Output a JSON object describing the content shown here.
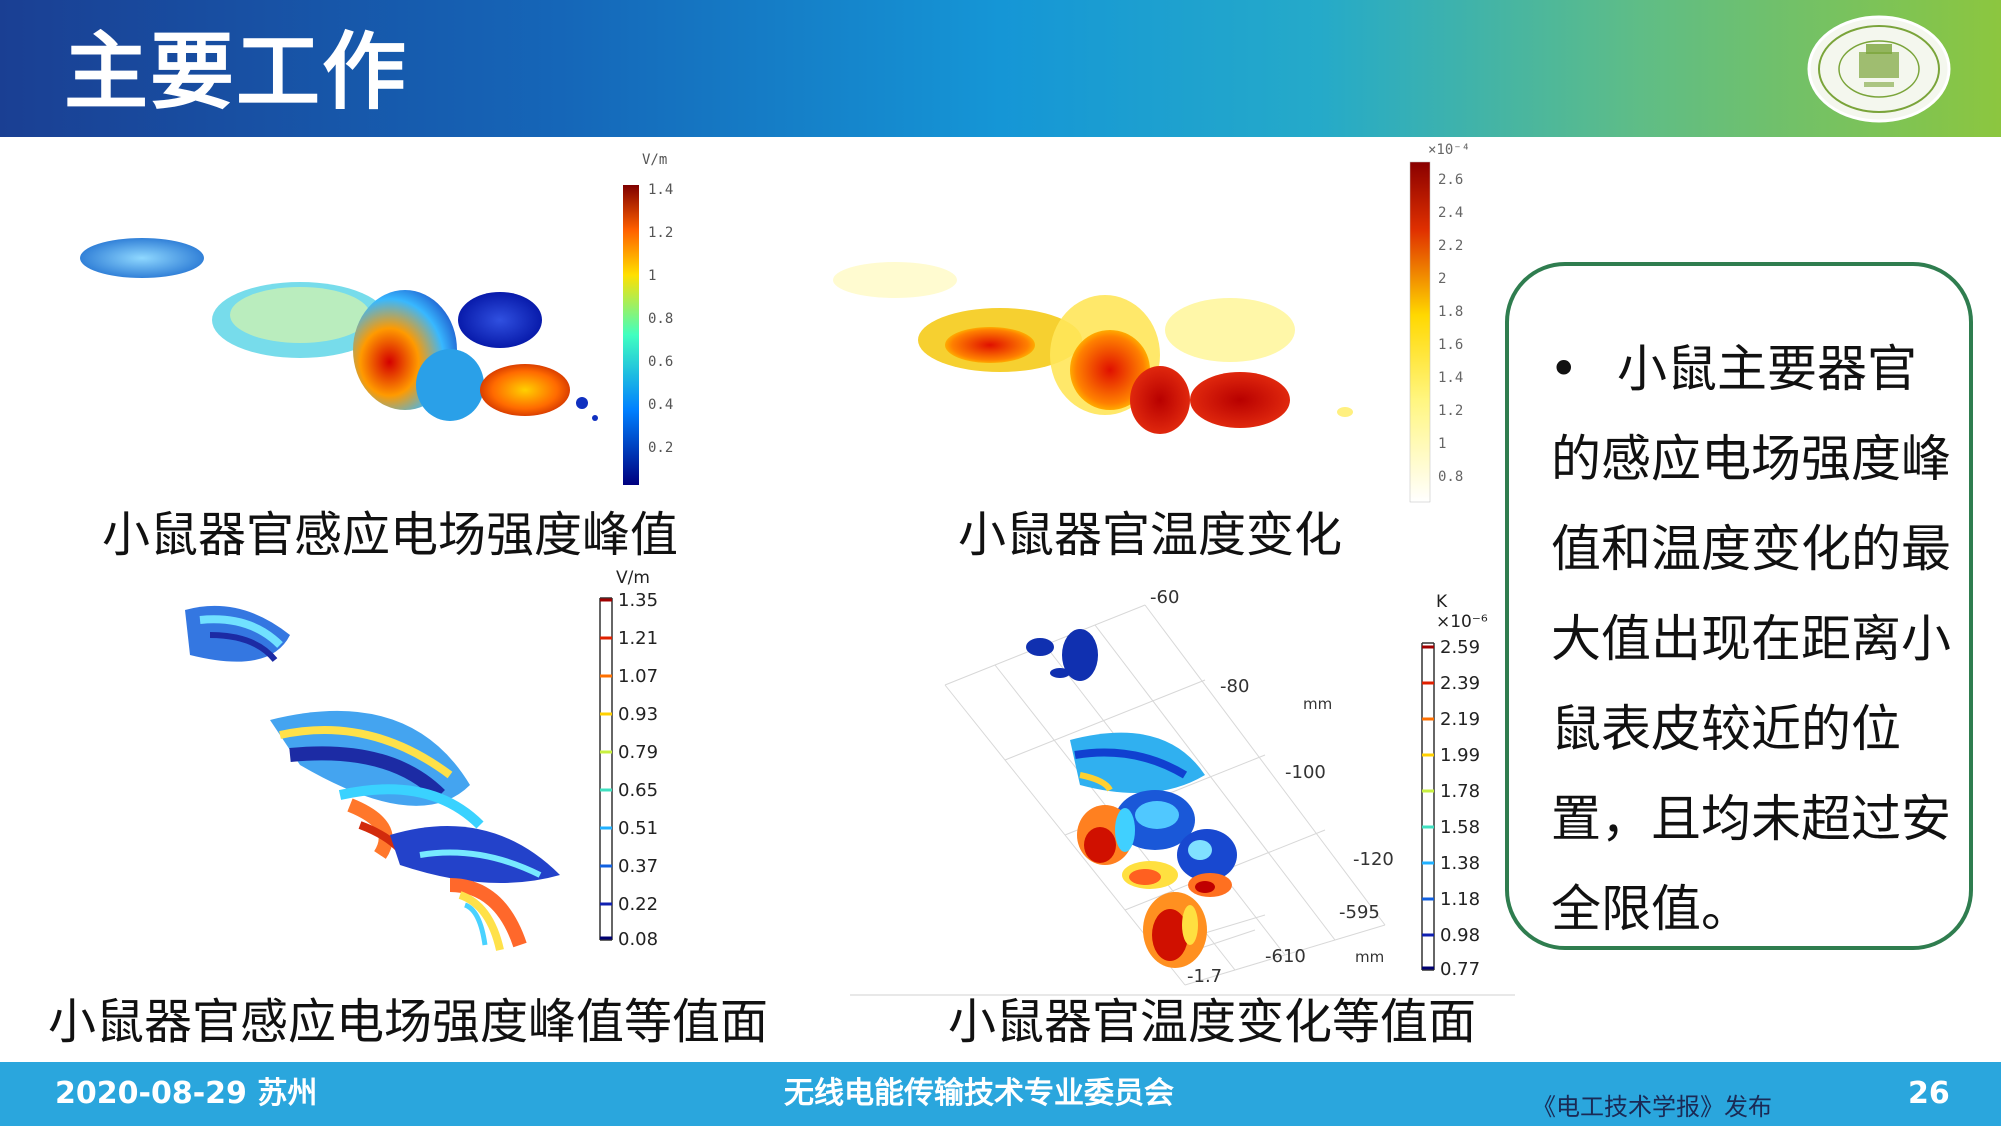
{
  "slide": {
    "title": "主要工作",
    "page_number": "26"
  },
  "footer": {
    "date_place": "2020-08-29  苏州",
    "committee": "无线电能传输技术专业委员会",
    "publisher": "《电工技术学报》发布"
  },
  "panels": {
    "efield_peak": {
      "caption": "小鼠器官感应电场强度峰值",
      "colorbar_unit": "V/m",
      "colorbar_ticks": [
        "1.4",
        "1.2",
        "1",
        "0.8",
        "0.6",
        "0.4",
        "0.2"
      ]
    },
    "temperature": {
      "caption": "小鼠器官温度变化",
      "colorbar_unit": "×10⁻⁴",
      "colorbar_ticks": [
        "2.6",
        "2.4",
        "2.2",
        "2",
        "1.8",
        "1.6",
        "1.4",
        "1.2",
        "1",
        "0.8"
      ]
    },
    "efield_iso": {
      "caption": "小鼠器官感应电场强度峰值等值面",
      "colorbar_unit": "V/m",
      "colorbar_ticks": [
        "1.35",
        "1.21",
        "1.07",
        "0.93",
        "0.79",
        "0.65",
        "0.51",
        "0.37",
        "0.22",
        "0.08"
      ]
    },
    "temperature_iso": {
      "caption": "小鼠器官温度变化等值面",
      "colorbar_unit_top": "K",
      "colorbar_unit": "×10⁻⁶",
      "colorbar_ticks": [
        "2.59",
        "2.39",
        "2.19",
        "1.99",
        "1.78",
        "1.58",
        "1.38",
        "1.18",
        "0.98",
        "0.77"
      ],
      "axis_labels": [
        "-60",
        "-80",
        "mm",
        "-100",
        "-120",
        "-595",
        "-610",
        "mm",
        "-1.7"
      ]
    }
  },
  "summary": {
    "bullet": "•",
    "text": "小鼠主要器官的感应电场强度峰值和温度变化的最大值出现在距离小鼠表皮较近的位置，且均未超过安全限值。"
  },
  "colors": {
    "header_start": "#1a3f93",
    "header_end": "#8cc63f",
    "footer": "#2aa6dd",
    "box_border": "#2f7d4f"
  },
  "logo": {
    "icon": "university-seal-logo"
  }
}
